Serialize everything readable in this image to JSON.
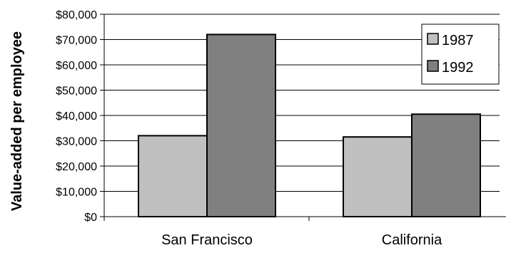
{
  "chart_data": {
    "type": "bar",
    "categories": [
      "San Francisco",
      "California"
    ],
    "series": [
      {
        "name": "1987",
        "values": [
          32000,
          31500
        ],
        "color": "#c0c0c0"
      },
      {
        "name": "1992",
        "values": [
          72000,
          40500
        ],
        "color": "#808080"
      }
    ],
    "ylabel": "Value-added per employee",
    "xlabel": "",
    "ylim": [
      0,
      80000
    ],
    "yticks": [
      0,
      10000,
      20000,
      30000,
      40000,
      50000,
      60000,
      70000,
      80000
    ],
    "ytick_labels": [
      "$0",
      "$10,000",
      "$20,000",
      "$30,000",
      "$40,000",
      "$50,000",
      "$60,000",
      "$70,000",
      "$80,000"
    ],
    "grid": true,
    "legend_position": "top-right"
  }
}
